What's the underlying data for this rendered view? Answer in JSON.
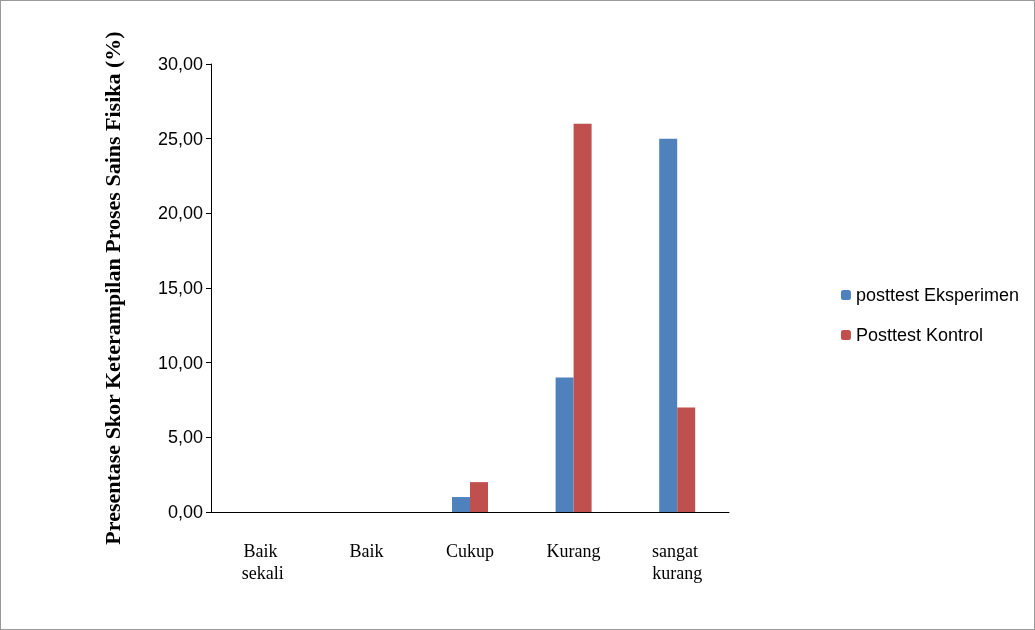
{
  "chart_data": {
    "type": "bar",
    "ylabel": "Presentase Skor Keterampilan Proses Sains Fisika (%)",
    "categories": [
      "Baik sekali",
      "Baik",
      "Cukup",
      "Kurang",
      "sangat kurang"
    ],
    "series": [
      {
        "name": "posttest Eksperimen",
        "color": "#4f81bd",
        "values": [
          0,
          0,
          1,
          9,
          25
        ]
      },
      {
        "name": "Posttest Kontrol",
        "color": "#c0504d",
        "values": [
          0,
          0,
          2,
          26,
          7
        ]
      }
    ],
    "ylim": [
      0,
      30
    ],
    "yticks": [
      {
        "value": 0,
        "label": "0,00"
      },
      {
        "value": 5,
        "label": "5,00"
      },
      {
        "value": 10,
        "label": "10,00"
      },
      {
        "value": 15,
        "label": "15,00"
      },
      {
        "value": 20,
        "label": "20,00"
      },
      {
        "value": 25,
        "label": "25,00"
      },
      {
        "value": 30,
        "label": "30,00"
      }
    ],
    "grid": false,
    "legend": "right"
  }
}
